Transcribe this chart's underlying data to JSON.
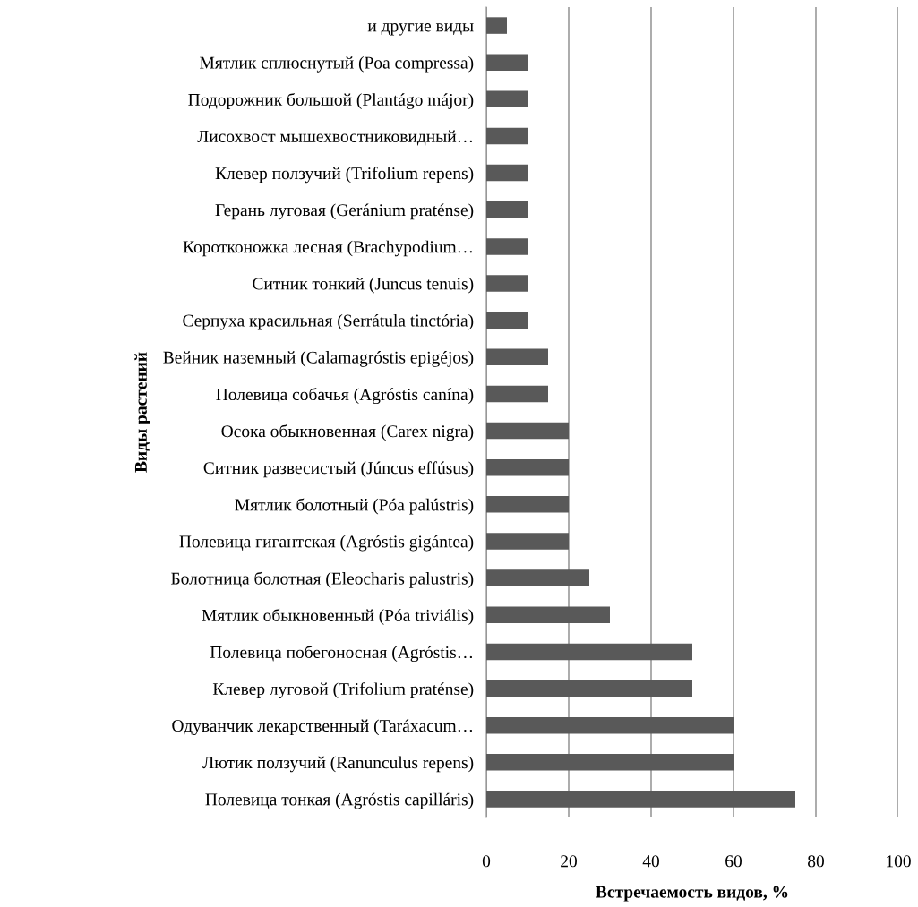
{
  "chart_data": {
    "type": "bar",
    "orientation": "horizontal",
    "xlabel": "Встречаемость видов, %",
    "ylabel": "Виды растений",
    "categories": [
      "и другие виды",
      "Мятлик сплюснутый (Poa compressa)",
      "Подорожник большой (Plantágo májor)",
      "Лисохвост мышехвостниковидный…",
      "Клевер ползучий (Trifolium repens)",
      "Герань луговая (Geránium praténse)",
      "Коротконожка лесная (Brachypodium…",
      "Ситник тонкий (Juncus tenuis)",
      "Серпуха красильная (Serrátula tinctória)",
      "Вейник наземный (Calamagróstis epigéjos)",
      "Полевица собачья (Agróstis canína)",
      "Осока обыкновенная (Carex nigra)",
      "Ситник развесистый (Júncus effúsus)",
      "Мятлик болотный (Póa palústris)",
      "Полевица гигантская (Agróstis gigántea)",
      "Болотница болотная (Eleocharis palustris)",
      "Мятлик обыкновенный (Póa triviális)",
      "Полевица побегоносная (Agróstis…",
      "Клевер луговой (Trifolium praténse)",
      "Одуванчик лекарственный (Taráxacum…",
      "Лютик ползучий (Ranunculus repens)",
      "Полевица тонкая (Agróstis capilláris)"
    ],
    "values": [
      5,
      10,
      10,
      10,
      10,
      10,
      10,
      10,
      10,
      15,
      15,
      20,
      20,
      20,
      20,
      25,
      30,
      50,
      50,
      60,
      60,
      75
    ],
    "color": "#595959",
    "xlim": [
      0,
      100
    ],
    "xticks": [
      0,
      20,
      40,
      60,
      80,
      100
    ],
    "grid": "x",
    "legend": false
  }
}
